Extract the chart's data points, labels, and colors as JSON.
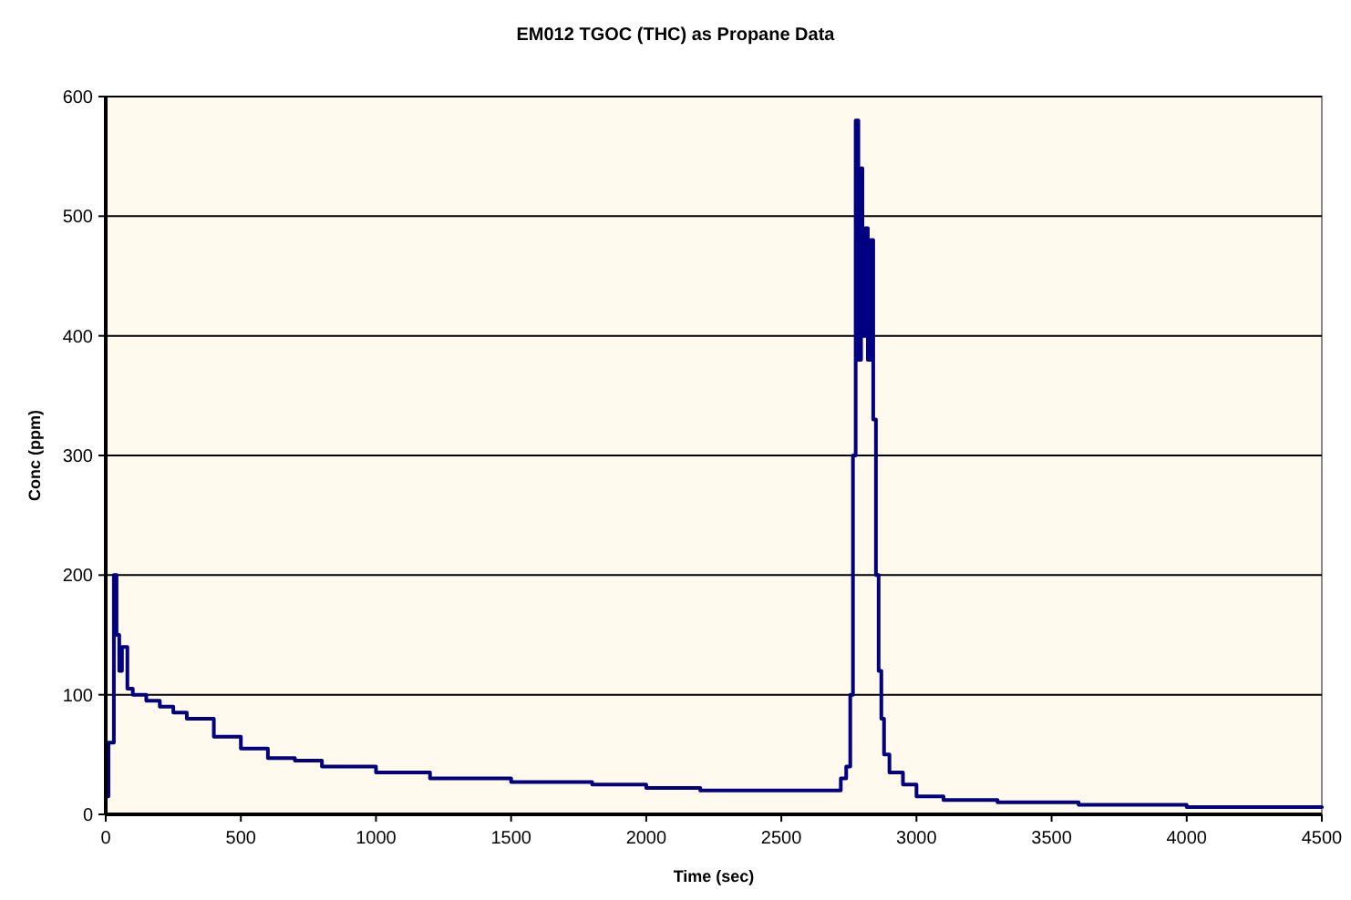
{
  "chart_data": {
    "type": "step",
    "title": "EM012 TGOC (THC) as Propane Data",
    "xlabel": "Time (sec)",
    "ylabel": "Conc (ppm)",
    "x": [
      0,
      10,
      20,
      30,
      40,
      50,
      60,
      80,
      100,
      150,
      200,
      250,
      300,
      400,
      500,
      600,
      700,
      800,
      1000,
      1200,
      1500,
      1800,
      2000,
      2200,
      2500,
      2700,
      2720,
      2740,
      2755,
      2765,
      2775,
      2785,
      2795,
      2800,
      2810,
      2820,
      2830,
      2840,
      2850,
      2860,
      2870,
      2880,
      2900,
      2950,
      3000,
      3100,
      3300,
      3600,
      4000,
      4500
    ],
    "series": [
      {
        "color": "#000080",
        "values": [
          15,
          60,
          60,
          200,
          150,
          120,
          140,
          105,
          100,
          95,
          90,
          85,
          80,
          65,
          55,
          47,
          45,
          40,
          35,
          30,
          27,
          25,
          22,
          20,
          20,
          20,
          30,
          40,
          100,
          300,
          580,
          380,
          540,
          400,
          490,
          380,
          480,
          330,
          200,
          120,
          80,
          50,
          35,
          25,
          15,
          12,
          10,
          8,
          6,
          5
        ]
      }
    ],
    "xlim": [
      0,
      4500
    ],
    "xticks": [
      0,
      500,
      1000,
      1500,
      2000,
      2500,
      3000,
      3500,
      4000,
      4500
    ],
    "ylim": [
      0,
      600
    ],
    "yticks": [
      0,
      100,
      200,
      300,
      400,
      500,
      600
    ],
    "grid": "y",
    "marker": "none"
  }
}
